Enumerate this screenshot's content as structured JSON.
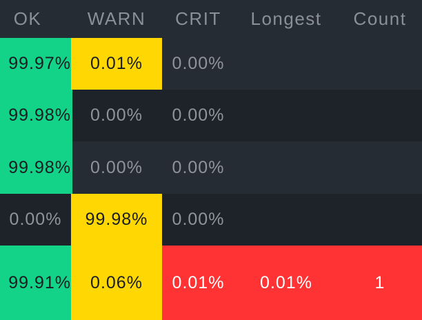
{
  "header": {
    "ok": "OK",
    "warn": "WARN",
    "crit": "CRIT",
    "longest": "Longest",
    "count": "Count"
  },
  "rows": [
    {
      "ok": "99.97%",
      "warn": "0.01%",
      "crit": "0.00%",
      "longest": "",
      "count": ""
    },
    {
      "ok": "99.98%",
      "warn": "0.00%",
      "crit": "0.00%",
      "longest": "",
      "count": ""
    },
    {
      "ok": "99.98%",
      "warn": "0.00%",
      "crit": "0.00%",
      "longest": "",
      "count": ""
    },
    {
      "ok": "0.00%",
      "warn": "99.98%",
      "crit": "0.00%",
      "longest": "",
      "count": ""
    },
    {
      "ok": "99.91%",
      "warn": "0.06%",
      "crit": "0.01%",
      "longest": "0.01%",
      "count": "1"
    }
  ],
  "colors": {
    "ok": "#13d389",
    "warn": "#ffd703",
    "crit": "#ff3333",
    "background": "#1e232a",
    "stripe": "#262c33"
  }
}
